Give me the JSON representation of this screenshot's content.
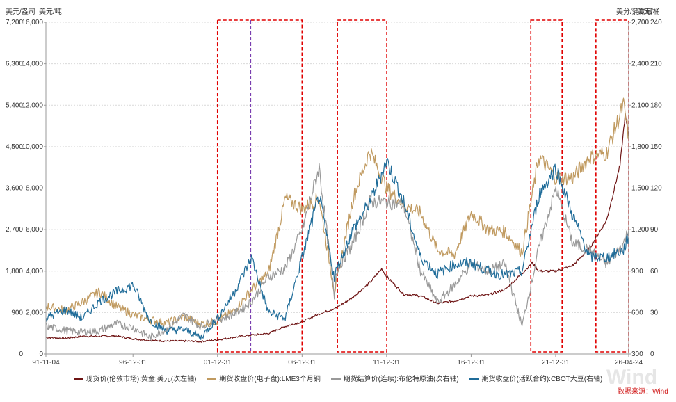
{
  "chart_data": {
    "type": "line",
    "unit_labels": {
      "left_outer": "美元/盎司",
      "left_inner": "美元/吨",
      "right_outer": "美分/蒲式耳",
      "right_inner": "美元/桶"
    },
    "left_outer_ticks": [
      "7,200",
      "6,300",
      "5,400",
      "4,500",
      "3,600",
      "2,700",
      "1,800",
      "900",
      "0"
    ],
    "left_inner_ticks": [
      "16,000",
      "14,000",
      "12,000",
      "10,000",
      "8,000",
      "6,000",
      "4,000",
      "2,000",
      "0"
    ],
    "right_outer_ticks": [
      "2,700",
      "2,400",
      "2,100",
      "1,800",
      "1,500",
      "1,200",
      "900",
      "600",
      "300"
    ],
    "right_inner_ticks": [
      "240",
      "210",
      "180",
      "150",
      "120",
      "90",
      "60",
      "30",
      "0"
    ],
    "x_tick_labels": [
      "91-11-04",
      "96-12-31",
      "01-12-31",
      "06-12-31",
      "11-12-31",
      "16-12-31",
      "21-12-31",
      "26-04-24"
    ],
    "x_tick_years": [
      1991.84,
      1996.99,
      2001.99,
      2006.99,
      2011.99,
      2016.99,
      2021.99,
      2026.31
    ],
    "x_range": [
      1991.84,
      2026.31
    ],
    "grid": true,
    "legend_position": "bottom",
    "series": [
      {
        "name": "现货价(伦敦市场):黄金:美元(次左轴)",
        "axis": "left_outer",
        "color": "#6e1414",
        "points": [
          [
            1991.84,
            360
          ],
          [
            1993,
            340
          ],
          [
            1994,
            385
          ],
          [
            1995,
            385
          ],
          [
            1996,
            390
          ],
          [
            1997,
            330
          ],
          [
            1998,
            295
          ],
          [
            1999,
            280
          ],
          [
            2000,
            280
          ],
          [
            2001,
            270
          ],
          [
            2002,
            310
          ],
          [
            2003,
            365
          ],
          [
            2004,
            410
          ],
          [
            2005,
            445
          ],
          [
            2006,
            600
          ],
          [
            2007,
            700
          ],
          [
            2008,
            870
          ],
          [
            2009,
            1000
          ],
          [
            2010,
            1230
          ],
          [
            2011,
            1550
          ],
          [
            2011.7,
            1850
          ],
          [
            2012,
            1680
          ],
          [
            2013,
            1300
          ],
          [
            2014,
            1260
          ],
          [
            2015,
            1100
          ],
          [
            2016,
            1150
          ],
          [
            2017,
            1260
          ],
          [
            2018,
            1280
          ],
          [
            2019,
            1400
          ],
          [
            2020,
            1750
          ],
          [
            2020.6,
            1980
          ],
          [
            2021,
            1800
          ],
          [
            2022,
            1800
          ],
          [
            2023,
            1920
          ],
          [
            2024,
            2300
          ],
          [
            2025,
            2900
          ],
          [
            2025.8,
            4100
          ],
          [
            2026.1,
            5200
          ],
          [
            2026.31,
            4700
          ]
        ]
      },
      {
        "name": "期货收盘价(电子盘):LME3个月铜",
        "axis": "left_inner",
        "color": "#c09a60",
        "points": [
          [
            1991.84,
            2300
          ],
          [
            1993,
            2100
          ],
          [
            1994,
            2500
          ],
          [
            1995,
            3000
          ],
          [
            1996,
            2300
          ],
          [
            1997,
            1900
          ],
          [
            1998,
            1650
          ],
          [
            1999,
            1500
          ],
          [
            2000,
            1800
          ],
          [
            2001,
            1450
          ],
          [
            2002,
            1600
          ],
          [
            2003,
            2100
          ],
          [
            2004,
            3100
          ],
          [
            2005,
            3900
          ],
          [
            2006,
            7500
          ],
          [
            2007,
            7000
          ],
          [
            2008,
            7500
          ],
          [
            2008.9,
            3000
          ],
          [
            2009,
            3300
          ],
          [
            2010,
            7500
          ],
          [
            2011,
            9800
          ],
          [
            2012,
            8000
          ],
          [
            2013,
            7200
          ],
          [
            2014,
            6800
          ],
          [
            2015,
            5000
          ],
          [
            2016,
            4800
          ],
          [
            2017,
            6800
          ],
          [
            2018,
            6000
          ],
          [
            2019,
            5900
          ],
          [
            2020,
            4900
          ],
          [
            2021,
            9500
          ],
          [
            2022,
            8500
          ],
          [
            2023,
            8500
          ],
          [
            2024,
            9500
          ],
          [
            2025,
            9700
          ],
          [
            2026,
            12000
          ],
          [
            2026.31,
            10500
          ]
        ]
      },
      {
        "name": "期货结算价(连续):布伦特原油(次右轴)",
        "axis": "right_inner",
        "color": "#999999",
        "points": [
          [
            1991.84,
            20
          ],
          [
            1993,
            17
          ],
          [
            1994,
            16
          ],
          [
            1995,
            17
          ],
          [
            1996,
            22
          ],
          [
            1997,
            19
          ],
          [
            1998,
            12
          ],
          [
            1999,
            18
          ],
          [
            2000,
            28
          ],
          [
            2001,
            20
          ],
          [
            2002,
            25
          ],
          [
            2003,
            29
          ],
          [
            2004,
            38
          ],
          [
            2005,
            56
          ],
          [
            2006,
            62
          ],
          [
            2007,
            90
          ],
          [
            2008,
            135
          ],
          [
            2008.9,
            42
          ],
          [
            2009,
            60
          ],
          [
            2010,
            80
          ],
          [
            2011,
            110
          ],
          [
            2012,
            110
          ],
          [
            2013,
            108
          ],
          [
            2014,
            60
          ],
          [
            2015,
            37
          ],
          [
            2016,
            50
          ],
          [
            2017,
            65
          ],
          [
            2018,
            60
          ],
          [
            2019,
            65
          ],
          [
            2020,
            20
          ],
          [
            2021,
            77
          ],
          [
            2022,
            120
          ],
          [
            2023,
            80
          ],
          [
            2024,
            75
          ],
          [
            2025,
            65
          ],
          [
            2026,
            80
          ],
          [
            2026.31,
            90
          ]
        ]
      },
      {
        "name": "期货收盘价(活跃合约):CBOT大豆(右轴)",
        "axis": "right_outer",
        "color": "#1f6c99",
        "points": [
          [
            1991.84,
            560
          ],
          [
            1993,
            620
          ],
          [
            1994,
            560
          ],
          [
            1995,
            680
          ],
          [
            1996,
            750
          ],
          [
            1997,
            800
          ],
          [
            1998,
            540
          ],
          [
            1999,
            470
          ],
          [
            2000,
            480
          ],
          [
            2001,
            420
          ],
          [
            2002,
            560
          ],
          [
            2003,
            750
          ],
          [
            2004,
            1000
          ],
          [
            2005,
            600
          ],
          [
            2006,
            560
          ],
          [
            2007,
            1000
          ],
          [
            2008,
            1450
          ],
          [
            2008.9,
            850
          ],
          [
            2009,
            900
          ],
          [
            2010,
            1200
          ],
          [
            2011,
            1400
          ],
          [
            2012,
            1700
          ],
          [
            2013,
            1400
          ],
          [
            2014,
            1000
          ],
          [
            2015,
            880
          ],
          [
            2016,
            950
          ],
          [
            2017,
            960
          ],
          [
            2018,
            900
          ],
          [
            2019,
            870
          ],
          [
            2020,
            900
          ],
          [
            2021,
            1450
          ],
          [
            2022,
            1650
          ],
          [
            2023,
            1300
          ],
          [
            2024,
            1000
          ],
          [
            2025,
            1000
          ],
          [
            2026,
            1050
          ],
          [
            2026.31,
            1150
          ]
        ]
      }
    ],
    "highlight_boxes_years": [
      [
        2001.99,
        2006.99
      ],
      [
        2009.08,
        2012.0
      ],
      [
        2020.52,
        2022.37
      ],
      [
        2024.37,
        2026.31
      ]
    ],
    "vertical_marker_year": 2003.95,
    "source_text": "数据来源：Wind",
    "watermark": "Wind"
  }
}
